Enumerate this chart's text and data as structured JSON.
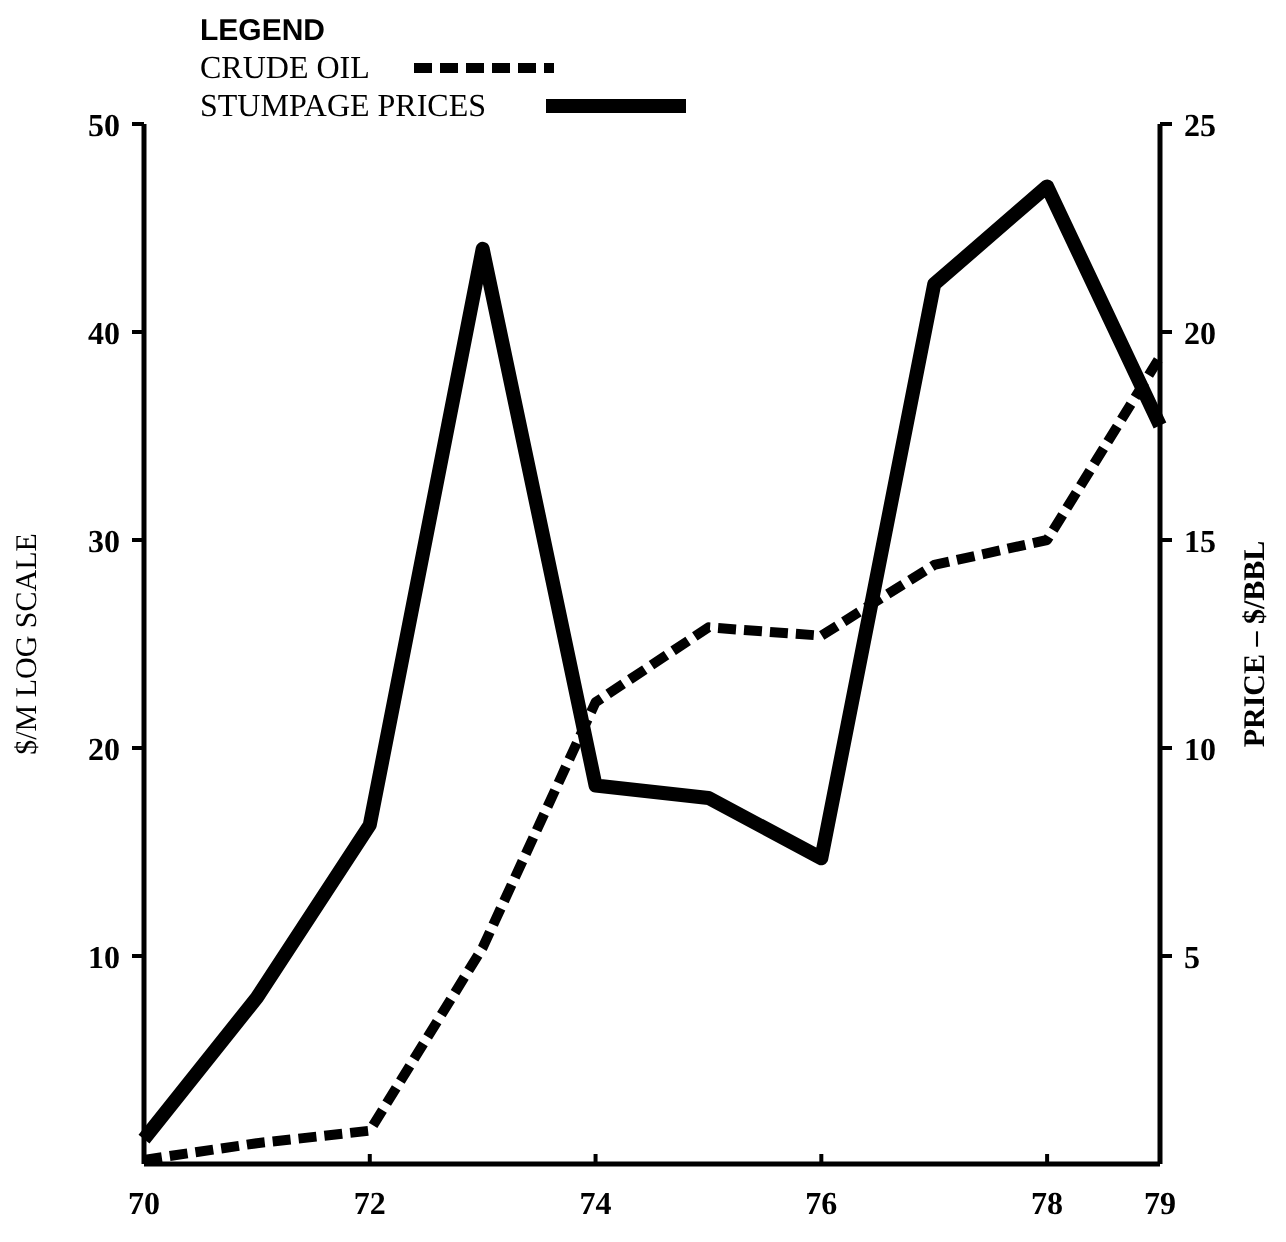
{
  "chart_data": {
    "type": "line",
    "xlabel": null,
    "ylabel": "$/M LOG SCALE",
    "y2label": "PRICE  –  $/BBL",
    "legend_title": "LEGEND",
    "legend": "top left",
    "grid": false,
    "x": [
      70,
      71,
      72,
      73,
      74,
      75,
      76,
      77,
      78,
      79
    ],
    "xlim": [
      70,
      79
    ],
    "xticks": [
      70,
      72,
      74,
      76,
      78,
      79
    ],
    "ylim": [
      0,
      50
    ],
    "yticks": [
      10,
      20,
      30,
      40,
      50
    ],
    "y2lim": [
      0,
      25
    ],
    "y2ticks": [
      5,
      10,
      15,
      20,
      25
    ],
    "series": [
      {
        "name": "CRUDE OIL",
        "color": "#000000",
        "axis": "y2",
        "line_style": "dashed",
        "values": [
          0.1,
          0.5,
          0.8,
          5.2,
          11.1,
          12.9,
          12.7,
          14.4,
          15.0,
          19.4
        ]
      },
      {
        "name": "STUMPAGE PRICES",
        "color": "#000000",
        "axis": "y",
        "line_style": "solid",
        "values": [
          1.2,
          8.0,
          16.3,
          44,
          18.2,
          17.6,
          14.7,
          42.3,
          47,
          35.5
        ]
      }
    ]
  }
}
